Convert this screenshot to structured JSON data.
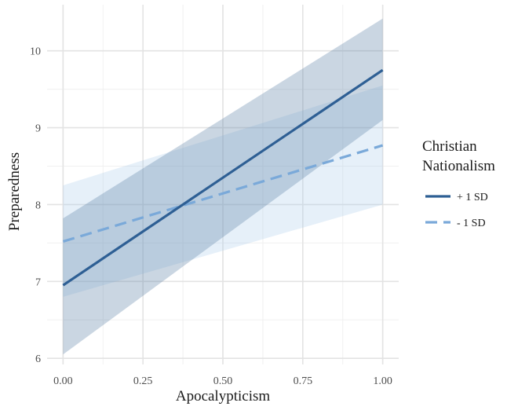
{
  "chart_data": {
    "type": "line",
    "title": "",
    "xlabel": "Apocalypticism",
    "ylabel": "Preparedness",
    "xlim": [
      -0.05,
      1.05
    ],
    "ylim": [
      5.92,
      10.6
    ],
    "xticks": [
      0.0,
      0.25,
      0.5,
      0.75,
      1.0
    ],
    "xtick_labels": [
      "0.00",
      "0.25",
      "0.50",
      "0.75",
      "1.00"
    ],
    "yticks": [
      6,
      7,
      8,
      9,
      10
    ],
    "ytick_labels": [
      "6",
      "7",
      "8",
      "9",
      "10"
    ],
    "grid": true,
    "legend": {
      "title_lines": [
        "Christian",
        "Nationalism"
      ],
      "placement": "right"
    },
    "series": [
      {
        "name": "+ 1 SD",
        "color": "#2e5f94",
        "band_color": "#5b7ea5",
        "line_style": "solid",
        "x": [
          0.0,
          1.0
        ],
        "y": [
          6.95,
          9.75
        ],
        "ci_lower": [
          6.05,
          9.1
        ],
        "ci_upper": [
          7.82,
          10.42
        ]
      },
      {
        "name": "- 1 SD",
        "color": "#7aa9d9",
        "band_color": "#a6c8ea",
        "line_style": "dashed",
        "x": [
          0.0,
          1.0
        ],
        "y": [
          7.52,
          8.77
        ],
        "ci_lower": [
          6.8,
          8.0
        ],
        "ci_upper": [
          8.25,
          9.55
        ]
      }
    ]
  }
}
